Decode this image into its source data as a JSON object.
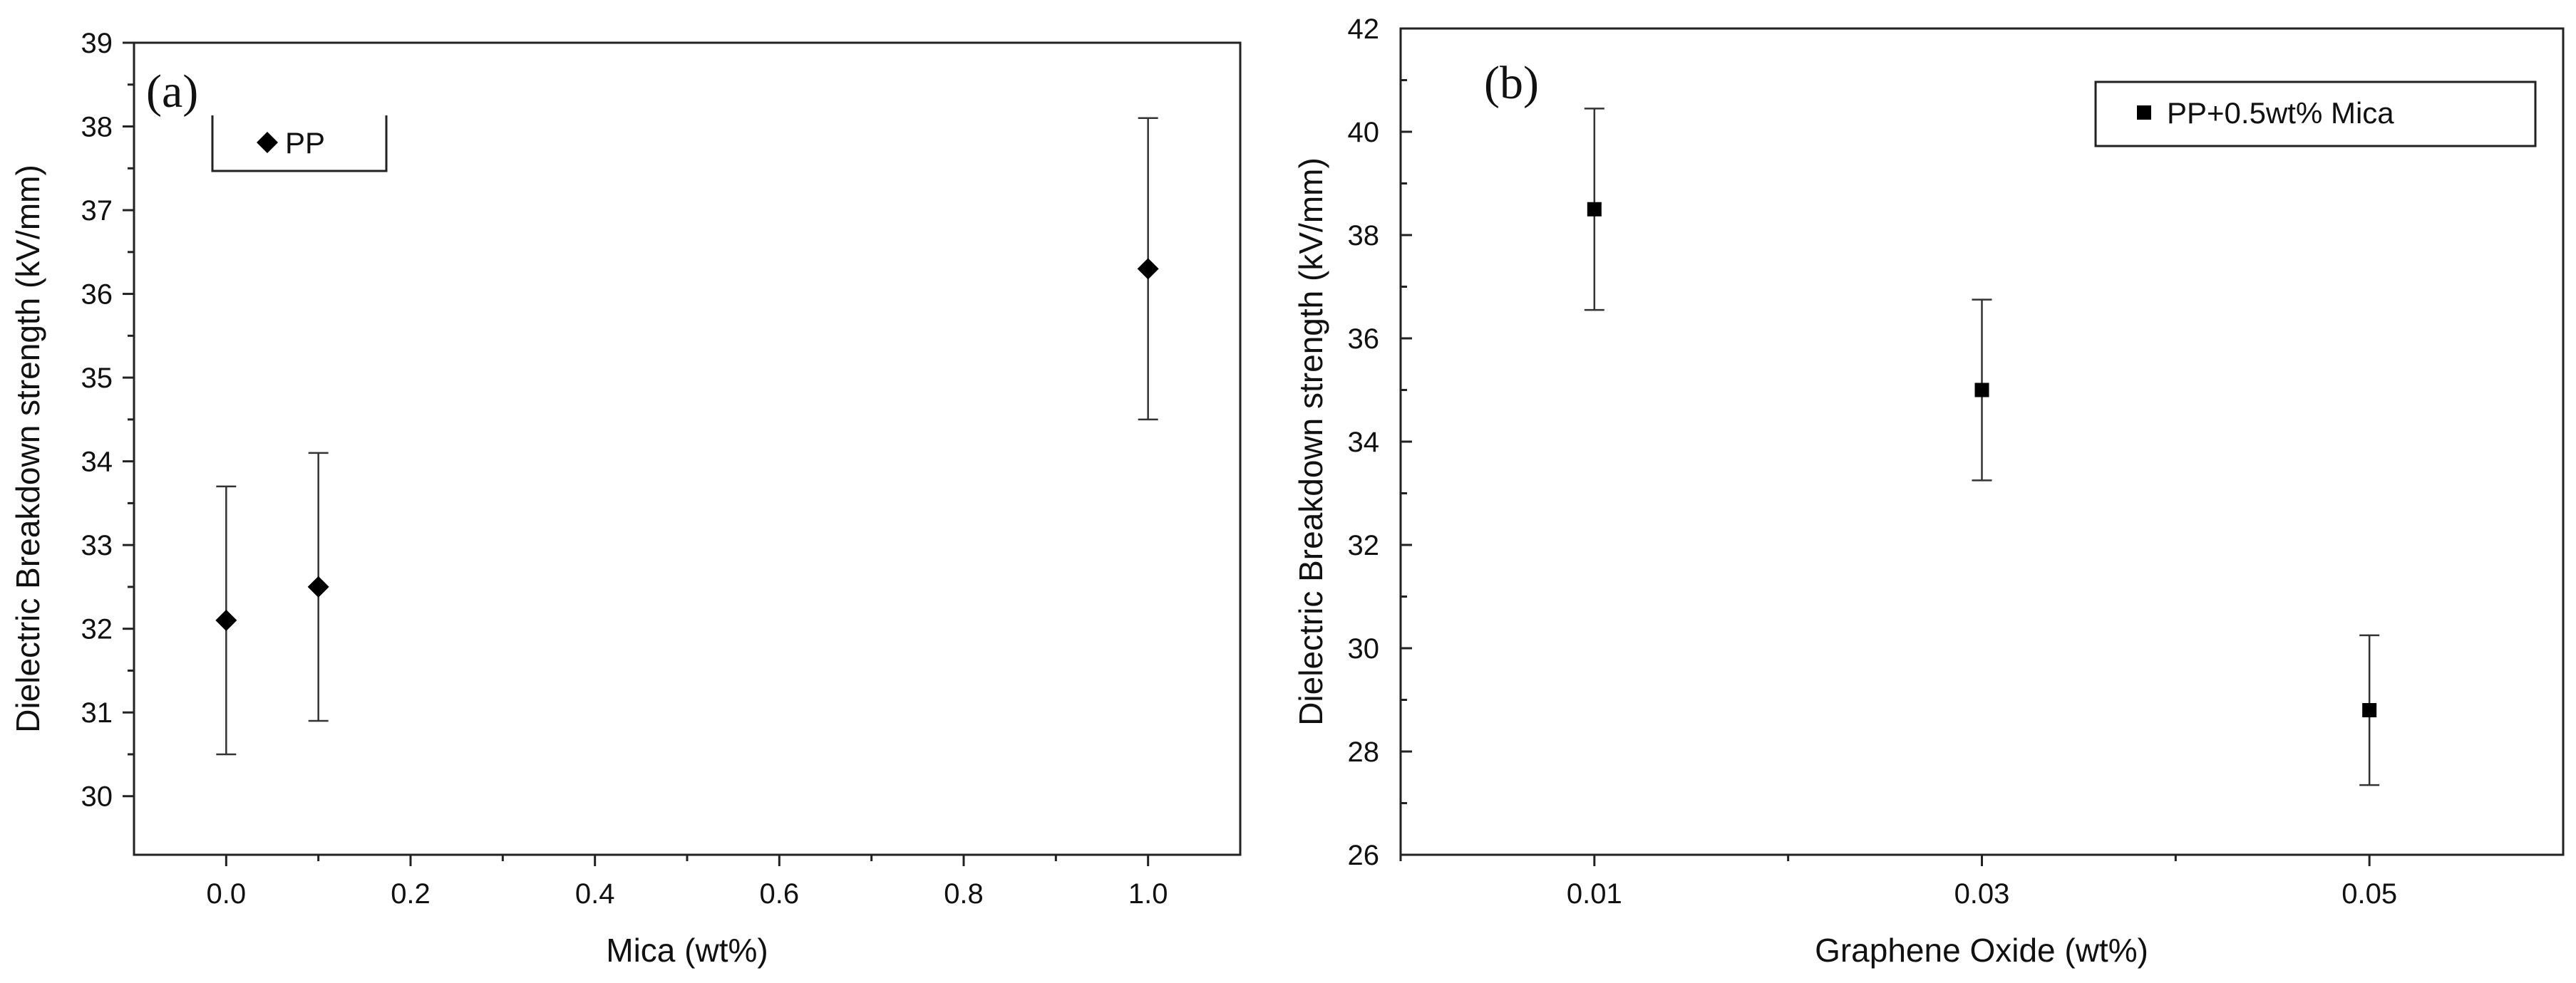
{
  "chart_data": [
    {
      "type": "scatter",
      "panel_label": "(a)",
      "xlabel": "Mica (wt%)",
      "ylabel": "Dielectric Breakdown strength (kV/mm)",
      "xlim": [
        -0.1,
        1.1
      ],
      "ylim": [
        29.3,
        39
      ],
      "x_ticks": [
        0.0,
        0.2,
        0.4,
        0.6,
        0.8,
        1.0
      ],
      "x_tick_labels": [
        "0.0",
        "0.2",
        "0.4",
        "0.6",
        "0.8",
        "1.0"
      ],
      "y_ticks": [
        30,
        31,
        32,
        33,
        34,
        35,
        36,
        37,
        38,
        39
      ],
      "y_tick_labels": [
        "30",
        "31",
        "32",
        "33",
        "34",
        "35",
        "36",
        "37",
        "38",
        "39"
      ],
      "marker": "diamond",
      "legend": "top-left",
      "series": [
        {
          "name": "PP",
          "x": [
            0.0,
            0.1,
            1.0
          ],
          "y": [
            32.1,
            32.5,
            36.3
          ],
          "error": [
            1.6,
            1.6,
            1.8
          ]
        }
      ]
    },
    {
      "type": "scatter",
      "panel_label": "(b)",
      "xlabel": "Graphene Oxide (wt%)",
      "ylabel": "Dielectric Breakdown strength (kV/mm)",
      "xlim": [
        0.0,
        0.06
      ],
      "ylim": [
        26,
        42
      ],
      "x_ticks": [
        0.01,
        0.03,
        0.05
      ],
      "x_tick_labels": [
        "0.01",
        "0.03",
        "0.05"
      ],
      "y_ticks": [
        26,
        28,
        30,
        32,
        34,
        36,
        38,
        40,
        42
      ],
      "y_tick_labels": [
        "26",
        "28",
        "30",
        "32",
        "34",
        "36",
        "38",
        "40",
        "42"
      ],
      "marker": "square",
      "legend": "top-right",
      "series": [
        {
          "name": "PP+0.5wt% Mica",
          "x": [
            0.01,
            0.03,
            0.05
          ],
          "y": [
            38.5,
            35.0,
            28.8
          ],
          "error": [
            1.95,
            1.75,
            1.45
          ]
        }
      ]
    }
  ]
}
